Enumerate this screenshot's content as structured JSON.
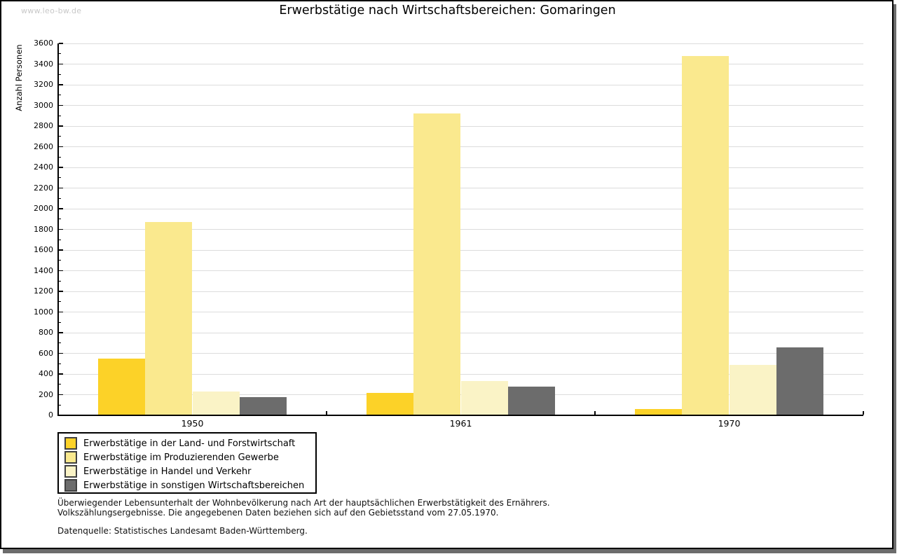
{
  "watermark": "www.leo-bw.de",
  "chart_data": {
    "type": "bar",
    "title": "Erwerbstätige nach Wirtschaftsbereichen: Gomaringen",
    "ylabel": "Anzahl Personen",
    "xlabel": "",
    "categories": [
      "1950",
      "1961",
      "1970"
    ],
    "series": [
      {
        "name": "Erwerbstätige in der Land- und Forstwirtschaft",
        "color": "#FCD228",
        "values": [
          550,
          215,
          60
        ]
      },
      {
        "name": "Erwerbstätige im Produzierenden Gewerbe",
        "color": "#FAE98E",
        "values": [
          1870,
          2920,
          3480
        ]
      },
      {
        "name": "Erwerbstätige in Handel und Verkehr",
        "color": "#FAF3C6",
        "values": [
          230,
          335,
          490
        ]
      },
      {
        "name": "Erwerbstätige in sonstigen Wirtschaftsbereichen",
        "color": "#6C6C6C",
        "values": [
          175,
          275,
          655
        ]
      }
    ],
    "ylim": [
      0,
      3600
    ],
    "ytick_step": 200,
    "ytick_minor_step": 100,
    "grid": true,
    "legend_position": "bottom-left"
  },
  "footnotes": {
    "line1": "Überwiegender Lebensunterhalt der Wohnbevölkerung nach Art der hauptsächlichen Erwerbstätigkeit des Ernährers.",
    "line2": "Volkszählungsergebnisse. Die angegebenen Daten beziehen sich auf den Gebietsstand vom 27.05.1970.",
    "source": "Datenquelle: Statistisches Landesamt Baden-Württemberg."
  },
  "colors": {
    "axis": "#000000",
    "gridline": "#DCDCDC",
    "watermark": "#C8C8C8",
    "frame_shadow": "#6C6C6C",
    "background": "#FFFFFF"
  }
}
